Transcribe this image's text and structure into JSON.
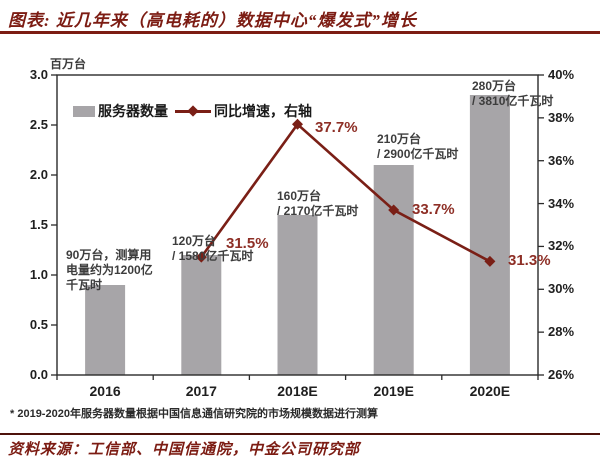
{
  "page": {
    "title": "图表: 近几年来（高电耗的）数据中心“爆发式”增长",
    "footnote": "* 2019-2020年服务器数量根据中国信息通信研究院的市场规模数据进行测算",
    "source": "资料来源：工信部、中国信通院，中金公司研究部"
  },
  "legend": {
    "bar_label": "服务器数量",
    "line_label": "同比增速，右轴"
  },
  "colors": {
    "bar": "#a7a5a8",
    "line": "#7a1f16",
    "accent_red": "#7c1c13",
    "data_label_red": "#8e2f26",
    "axis": "#2b2b2b"
  },
  "chart_data": {
    "type": "bar",
    "title": "近几年来（高电耗的）数据中心“爆发式”增长",
    "categories": [
      "2016",
      "2017",
      "2018E",
      "2019E",
      "2020E"
    ],
    "series": [
      {
        "name": "服务器数量",
        "type": "bar",
        "axis": "left",
        "values": [
          0.9,
          1.2,
          1.6,
          2.1,
          2.8
        ]
      },
      {
        "name": "同比增速，右轴",
        "type": "line",
        "axis": "right",
        "values": [
          null,
          31.5,
          37.7,
          33.7,
          31.3
        ]
      }
    ],
    "left_axis": {
      "label": "百万台",
      "min": 0.0,
      "max": 3.0,
      "ticks": [
        "3.0",
        "2.5",
        "2.0",
        "1.5",
        "1.0",
        "0.5",
        "0.0"
      ]
    },
    "right_axis": {
      "min": 26,
      "max": 40,
      "ticks": [
        "40%",
        "38%",
        "36%",
        "34%",
        "32%",
        "30%",
        "28%",
        "26%"
      ]
    },
    "line_labels": [
      "31.5%",
      "37.7%",
      "33.7%",
      "31.3%"
    ],
    "annotations": [
      "90万台，测算用\n电量约为1200亿\n千瓦时",
      "120万台\n/ 1580亿千瓦时",
      "160万台\n/ 2170亿千瓦时",
      "210万台\n/ 2900亿千瓦时",
      "280万台\n/ 3810亿千瓦时"
    ],
    "grid": false,
    "legend_position": "inside-top-left"
  }
}
